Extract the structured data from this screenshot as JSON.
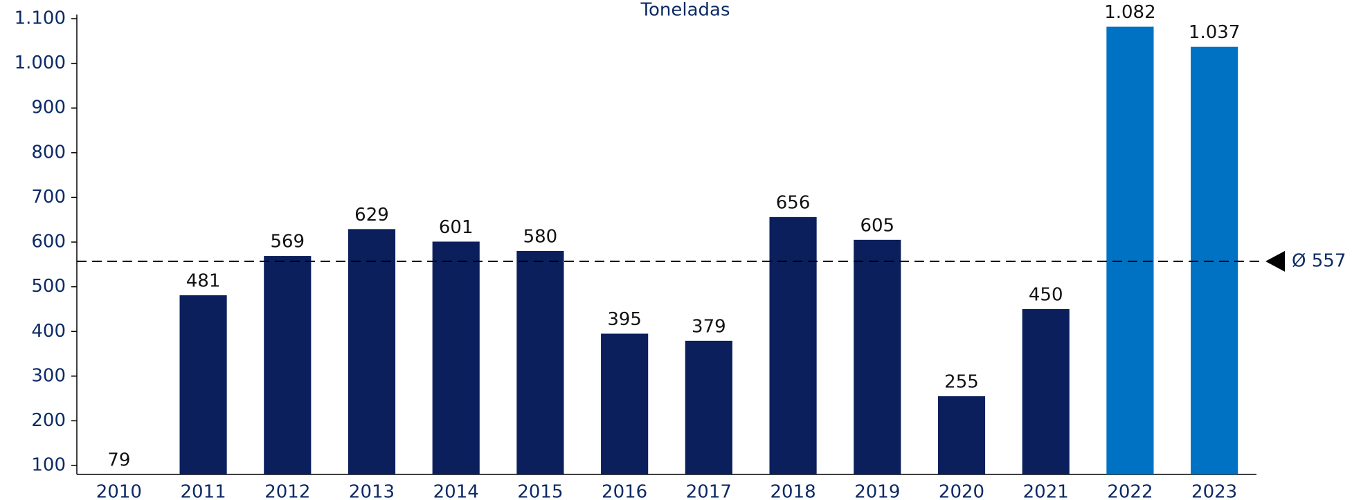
{
  "chart_data": {
    "type": "bar",
    "title": "Toneladas",
    "categories": [
      "2010",
      "2011",
      "2012",
      "2013",
      "2014",
      "2015",
      "2016",
      "2017",
      "2018",
      "2019",
      "2020",
      "2021",
      "2022",
      "2023"
    ],
    "values": [
      79,
      481,
      569,
      629,
      601,
      580,
      395,
      379,
      656,
      605,
      255,
      450,
      1082,
      1037
    ],
    "value_labels": [
      "79",
      "481",
      "569",
      "629",
      "601",
      "580",
      "395",
      "379",
      "656",
      "605",
      "255",
      "450",
      "1.082",
      "1.037"
    ],
    "colors": [
      "#0b1f5c",
      "#0b1f5c",
      "#0b1f5c",
      "#0b1f5c",
      "#0b1f5c",
      "#0b1f5c",
      "#0b1f5c",
      "#0b1f5c",
      "#0b1f5c",
      "#0b1f5c",
      "#0b1f5c",
      "#0b1f5c",
      "#0072c3",
      "#0072c3"
    ],
    "ylim": [
      80,
      1100
    ],
    "yticks": [
      100,
      200,
      300,
      400,
      500,
      600,
      700,
      800,
      900,
      {
        "value": 1000,
        "label": "1.000"
      },
      {
        "value": 1100,
        "label": "1.100"
      }
    ],
    "average": {
      "value": 557,
      "label": "Ø 557"
    },
    "grid": false
  }
}
